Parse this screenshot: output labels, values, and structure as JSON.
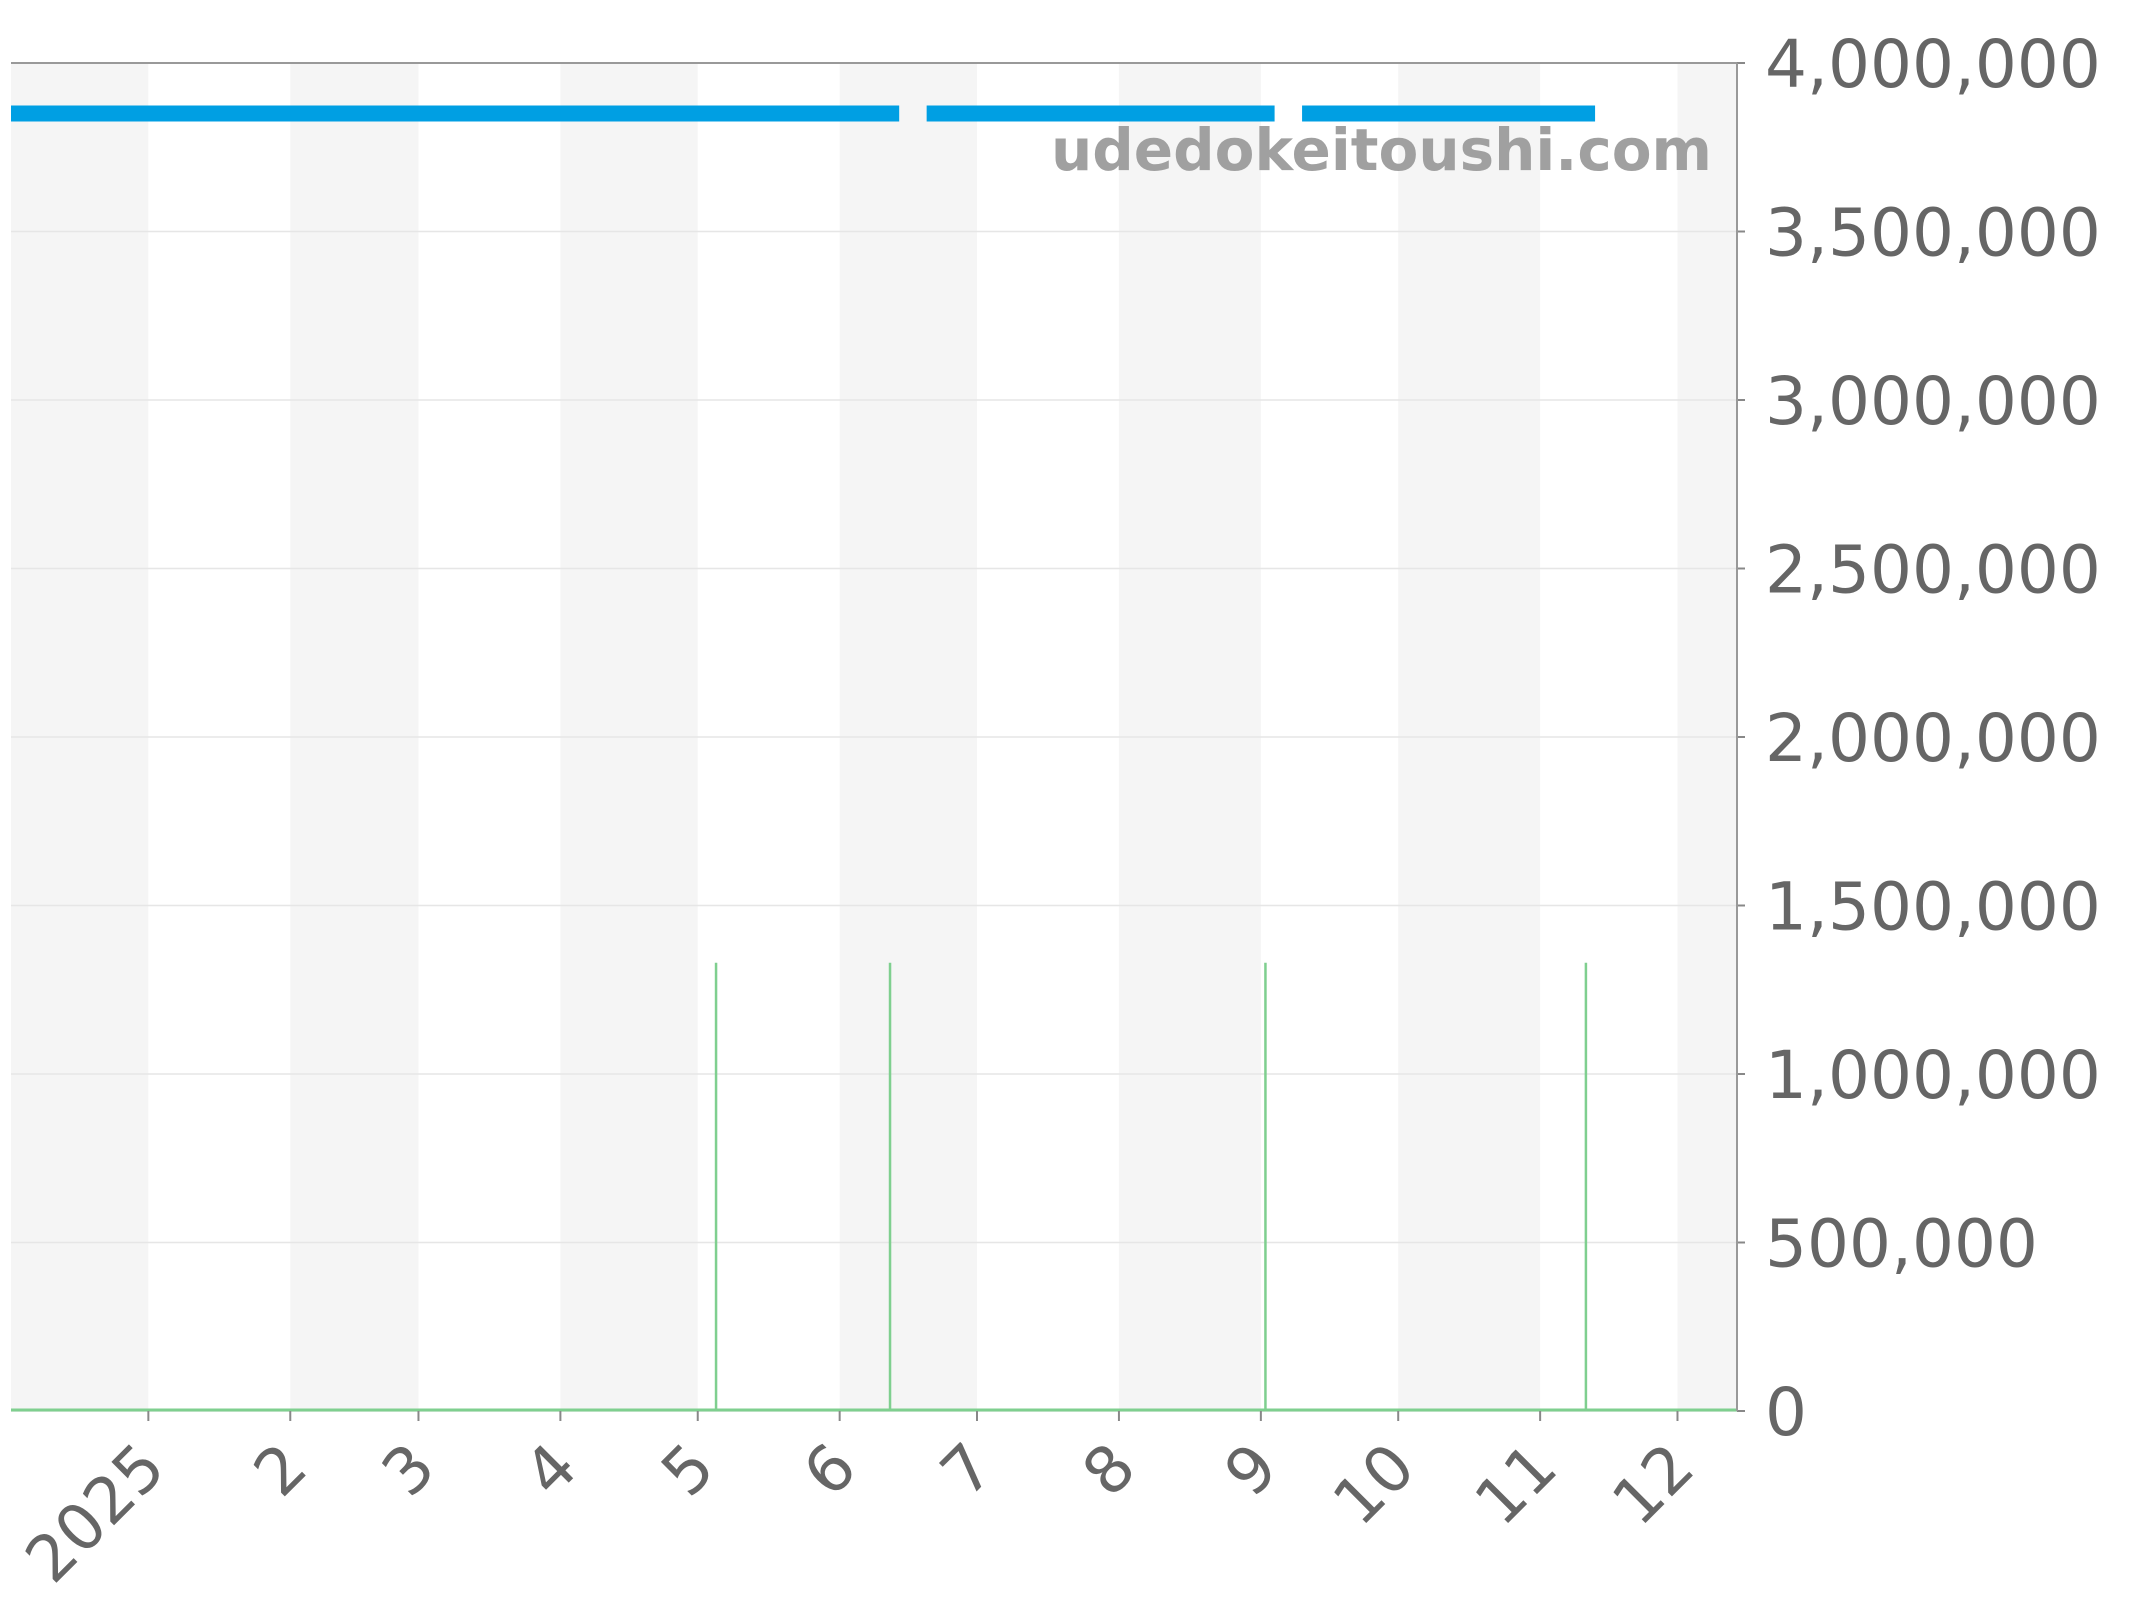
{
  "chart_data": {
    "type": "line",
    "title": "",
    "xlabel": "",
    "ylabel": "",
    "watermark": "udedokeitoushi.com",
    "xlim": [
      "2024-12-02",
      "2025-12-14"
    ],
    "ylim": [
      0,
      4000000
    ],
    "grid": true,
    "alternating_month_shading": true,
    "y_axis_position": "right",
    "x_ticks": [
      {
        "date": "2025-01-01",
        "label": "2025"
      },
      {
        "date": "2025-02-01",
        "label": "2"
      },
      {
        "date": "2025-03-01",
        "label": "3"
      },
      {
        "date": "2025-04-01",
        "label": "4"
      },
      {
        "date": "2025-05-01",
        "label": "5"
      },
      {
        "date": "2025-06-01",
        "label": "6"
      },
      {
        "date": "2025-07-01",
        "label": "7"
      },
      {
        "date": "2025-08-01",
        "label": "8"
      },
      {
        "date": "2025-09-01",
        "label": "9"
      },
      {
        "date": "2025-10-01",
        "label": "10"
      },
      {
        "date": "2025-11-01",
        "label": "11"
      },
      {
        "date": "2025-12-01",
        "label": "12"
      }
    ],
    "y_ticks": [
      {
        "value": 0,
        "label": "0"
      },
      {
        "value": 500000,
        "label": "500,000"
      },
      {
        "value": 1000000,
        "label": "1,000,000"
      },
      {
        "value": 1500000,
        "label": "1,500,000"
      },
      {
        "value": 2000000,
        "label": "2,000,000"
      },
      {
        "value": 2500000,
        "label": "2,500,000"
      },
      {
        "value": 3000000,
        "label": "3,000,000"
      },
      {
        "value": 3500000,
        "label": "3,500,000"
      },
      {
        "value": 4000000,
        "label": "4,000,000"
      }
    ],
    "series": [
      {
        "type": "line",
        "color": "#009fe3",
        "segments": [
          [
            [
              "2024-12-02",
              3850000
            ],
            [
              "2025-06-14",
              3850000
            ]
          ],
          [
            [
              "2025-06-20",
              3850000
            ],
            [
              "2025-09-04",
              3850000
            ]
          ],
          [
            [
              "2025-09-10",
              3850000
            ],
            [
              "2025-11-13",
              3850000
            ]
          ]
        ]
      },
      {
        "type": "bar",
        "color": "#7fcf8f",
        "points": [
          [
            "2025-05-05",
            1330000
          ],
          [
            "2025-06-12",
            1330000
          ],
          [
            "2025-09-02",
            1330000
          ],
          [
            "2025-11-11",
            1330000
          ]
        ]
      }
    ]
  }
}
